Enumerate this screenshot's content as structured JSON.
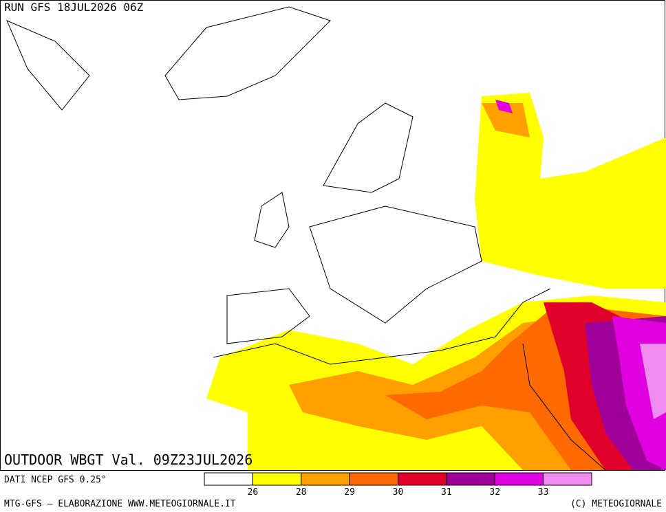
{
  "header": {
    "run": "RUN GFS 18JUL2026 06Z"
  },
  "map": {
    "title": "OUTDOOR WBGT Val. 09Z23JUL2026"
  },
  "footer": {
    "source": "DATI NCEP GFS 0.25°",
    "credit": "MTG-GFS — ELABORAZIONE WWW.METEOGIORNALE.IT",
    "copyright": "(C) METEOGIORNALE"
  },
  "legend": {
    "colors": [
      "#ffffff",
      "#ffff00",
      "#ff9f00",
      "#ff6a00",
      "#e0002a",
      "#a0009a",
      "#e000e0",
      "#f08cf0"
    ],
    "ticks": [
      26,
      28,
      29,
      30,
      31,
      32,
      33
    ]
  }
}
